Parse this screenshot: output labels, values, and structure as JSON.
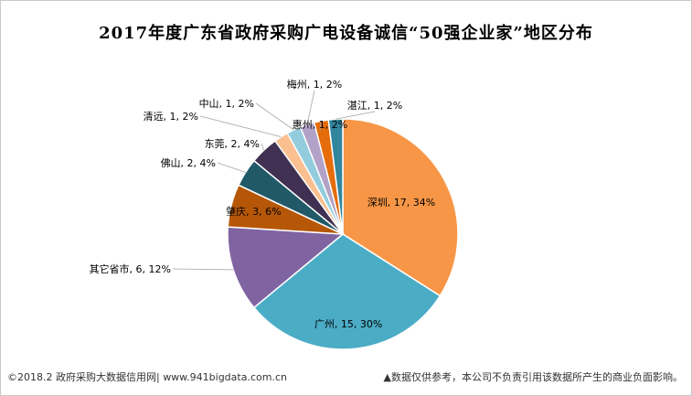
{
  "chart_data": {
    "type": "pie",
    "title": "2017年度广东省政府采购广电设备诚信“50强企业家”地区分布",
    "slices": [
      {
        "name": "深圳",
        "value": 17,
        "percent": "34%",
        "color": "#F79646"
      },
      {
        "name": "广州",
        "value": 15,
        "percent": "30%",
        "color": "#4BACC6"
      },
      {
        "name": "其它省市",
        "value": 6,
        "percent": "12%",
        "color": "#8064A2"
      },
      {
        "name": "肇庆",
        "value": 3,
        "percent": "6%",
        "color": "#B65708"
      },
      {
        "name": "佛山",
        "value": 2,
        "percent": "4%",
        "color": "#215968"
      },
      {
        "name": "东莞",
        "value": 2,
        "percent": "4%",
        "color": "#403152"
      },
      {
        "name": "清远",
        "value": 1,
        "percent": "2%",
        "color": "#FAC090"
      },
      {
        "name": "中山",
        "value": 1,
        "percent": "2%",
        "color": "#93CDDD"
      },
      {
        "name": "梅州",
        "value": 1,
        "percent": "2%",
        "color": "#B3A2C7"
      },
      {
        "name": "惠州",
        "value": 1,
        "percent": "2%",
        "color": "#E46C0A"
      },
      {
        "name": "湛江",
        "value": 1,
        "percent": "2%",
        "color": "#31859C"
      }
    ]
  },
  "footer": {
    "source": "©2018.2 政府采购大数据信用网| www.941bigdata.com.cn",
    "disclaimer": "▲数据仅供参考，本公司不负责引用该数据所产生的商业负面影响。"
  }
}
